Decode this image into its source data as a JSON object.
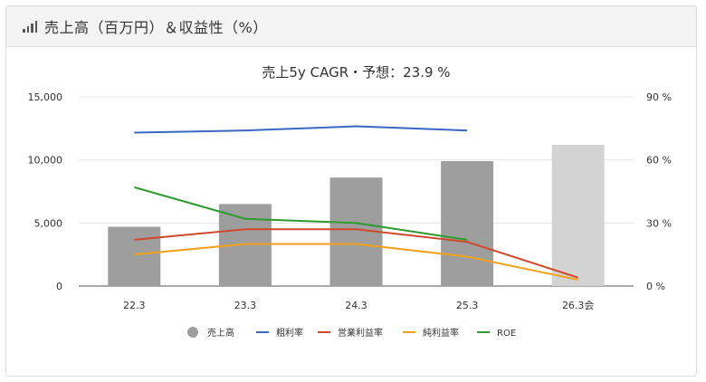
{
  "header": {
    "title": "売上高（百万円）＆収益性（%）",
    "icon": "bar-chart-icon"
  },
  "chart_data": {
    "type": "bar",
    "title": "売上5y CAGR・予想：23.9 %",
    "categories": [
      "22.3",
      "23.3",
      "24.3",
      "25.3",
      "26.3会"
    ],
    "y_left": {
      "ylim": [
        0,
        15000
      ],
      "ticks": [
        "0",
        "5,000",
        "10,000",
        "15,000"
      ],
      "tick_values": [
        0,
        5000,
        10000,
        15000
      ]
    },
    "y_right": {
      "ylim": [
        0,
        90
      ],
      "ticks": [
        "0 %",
        "30 %",
        "60 %",
        "90 %"
      ],
      "tick_values": [
        0,
        30,
        60,
        90
      ]
    },
    "bars": {
      "name": "売上高",
      "values": [
        4700,
        6500,
        8600,
        9900,
        11200
      ],
      "colors": [
        "#9e9e9e",
        "#9e9e9e",
        "#9e9e9e",
        "#9e9e9e",
        "#d3d3d3"
      ]
    },
    "lines": [
      {
        "name": "粗利率",
        "color": "#3a66c4",
        "values": [
          73,
          74,
          76,
          74,
          null
        ]
      },
      {
        "name": "営業利益率",
        "color": "#d0482a",
        "values": [
          22,
          27,
          27,
          21,
          4
        ]
      },
      {
        "name": "純利益率",
        "color": "#f0a11c",
        "values": [
          15,
          20,
          20,
          14,
          3
        ]
      },
      {
        "name": "ROE",
        "color": "#2f9a2f",
        "values": [
          47,
          32,
          30,
          22,
          null
        ]
      }
    ],
    "grid": true,
    "legend_position": "bottom"
  }
}
